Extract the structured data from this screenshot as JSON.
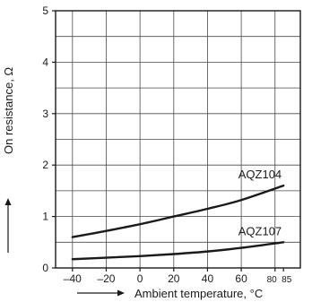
{
  "chart_data": {
    "type": "line",
    "xlabel": "Ambient temperature, °C",
    "ylabel": "On resistance, Ω",
    "x_ticks": [
      -40,
      -20,
      0,
      20,
      40,
      60,
      80,
      85
    ],
    "x_tick_labels": [
      "–40",
      "–20",
      "0",
      "20",
      "40",
      "60",
      "80",
      "85"
    ],
    "y_ticks": [
      0,
      1,
      2,
      3,
      4,
      5
    ],
    "y_tick_labels": [
      "0",
      "1",
      "2",
      "3",
      "4",
      "5"
    ],
    "xlim": [
      -50,
      95
    ],
    "ylim": [
      0,
      5
    ],
    "grid": true,
    "series": [
      {
        "name": "AQZ104",
        "x": [
          -40,
          -20,
          0,
          20,
          40,
          60,
          85
        ],
        "y": [
          0.6,
          0.72,
          0.85,
          1.0,
          1.15,
          1.32,
          1.6
        ]
      },
      {
        "name": "AQZ107",
        "x": [
          -40,
          -20,
          0,
          20,
          40,
          60,
          85
        ],
        "y": [
          0.17,
          0.2,
          0.23,
          0.27,
          0.32,
          0.39,
          0.5
        ]
      }
    ]
  }
}
